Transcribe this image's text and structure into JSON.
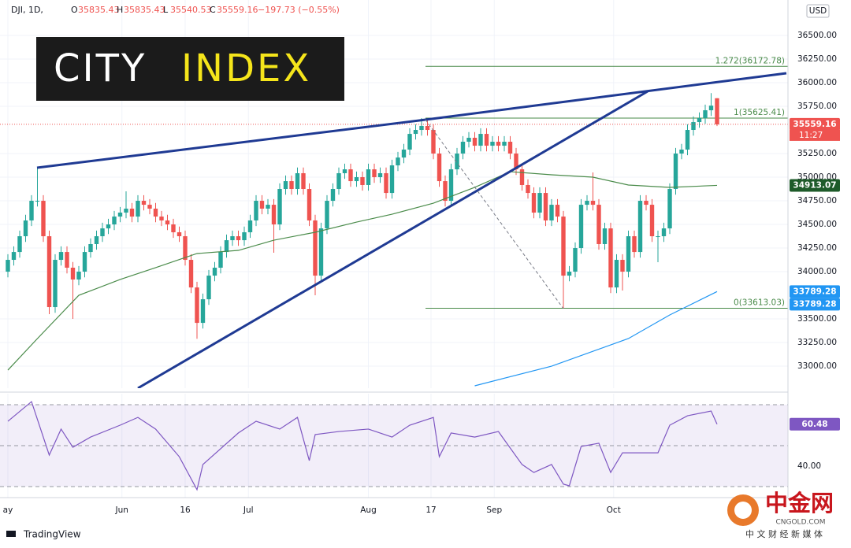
{
  "header": {
    "symbol": "DJI, 1D,",
    "ohlc_prefixes": [
      "O",
      "H",
      "L",
      "C"
    ],
    "change_text": "−197.73 (−0.55%)"
  },
  "logo": {
    "word1": "CITY",
    "word2": "INDEX"
  },
  "watermark": {
    "name": "中金网",
    "site": "CNGOLD.COM",
    "tagline": "中 文 财 经 新 媒 体"
  },
  "footer": {
    "brand": "TradingView"
  },
  "chart_data": {
    "type": "candlestick",
    "currency": "USD",
    "countdown": "11:27",
    "up_color": "#26a69a",
    "down_color": "#ef5350",
    "open": [
      34000,
      34125,
      34208,
      34375,
      34542,
      34750,
      34750,
      34375,
      33625,
      34125,
      34208,
      34042,
      33917,
      34000,
      34208,
      34292,
      34375,
      34458,
      34500,
      34583,
      34625,
      34667,
      34583,
      34750,
      34708,
      34667,
      34583,
      34542,
      34500,
      34417,
      34375,
      34125,
      33833,
      33458,
      33708,
      33958,
      34042,
      34208,
      34333,
      34375,
      34333,
      34417,
      34542,
      34750,
      34667,
      34708,
      34500,
      34875,
      34958,
      34875,
      35042,
      34875,
      34542,
      33958,
      34458,
      34750,
      34875,
      35042,
      35083,
      34958,
      35000,
      34917,
      35083,
      35000,
      35042,
      34833,
      35125,
      35208,
      35292,
      35458,
      35500,
      35542,
      35500,
      35250,
      34958,
      34750,
      35083,
      35250,
      35375,
      35417,
      35333,
      35458,
      35333,
      35375,
      35333,
      35375,
      35250,
      35083,
      34917,
      34833,
      34625,
      34833,
      34542,
      34708,
      34583,
      33958,
      34000,
      34250,
      34708,
      34750,
      34708,
      34292,
      34458,
      33833,
      34125,
      34000,
      34375,
      34208,
      34750,
      34708,
      34375,
      34375,
      34458,
      34875,
      35250,
      35292,
      35500,
      35583,
      35625,
      35708,
      35835.43
    ],
    "high": [
      34185,
      34268,
      34435,
      34602,
      34810,
      35100,
      34810,
      34435,
      34185,
      34268,
      34268,
      34102,
      34060,
      34268,
      34352,
      34435,
      34518,
      34560,
      34643,
      34685,
      34850,
      34727,
      34810,
      34810,
      34768,
      34727,
      34643,
      34602,
      34560,
      34477,
      34435,
      34185,
      33893,
      33768,
      34018,
      34102,
      34268,
      34393,
      34435,
      34435,
      34477,
      34602,
      34810,
      34810,
      34768,
      34768,
      34935,
      35018,
      35018,
      35102,
      35102,
      34935,
      34602,
      34518,
      34810,
      34935,
      35102,
      35143,
      35143,
      35060,
      35060,
      35143,
      35143,
      35102,
      35102,
      35185,
      35268,
      35352,
      35518,
      35560,
      35625.41,
      35602,
      35560,
      35310,
      35018,
      35143,
      35310,
      35435,
      35477,
      35477,
      35518,
      35518,
      35435,
      35435,
      35435,
      35435,
      35310,
      35143,
      34977,
      34893,
      34893,
      34893,
      34768,
      34768,
      34643,
      34060,
      34310,
      34768,
      34810,
      35050,
      34768,
      34518,
      34518,
      34185,
      34185,
      34435,
      34435,
      34810,
      34810,
      34768,
      34435,
      34518,
      34935,
      35310,
      35352,
      35560,
      35643,
      35685,
      35768,
      35890,
      35835.43
    ],
    "low": [
      33940,
      34065,
      34148,
      34315,
      34482,
      34690,
      34315,
      33550,
      33565,
      34065,
      33982,
      33500,
      33857,
      33940,
      34148,
      34232,
      34315,
      34398,
      34440,
      34523,
      34565,
      34523,
      34523,
      34648,
      34607,
      34523,
      34482,
      34440,
      34357,
      34315,
      34065,
      33773,
      33290,
      33398,
      33648,
      33898,
      33982,
      34148,
      34273,
      34273,
      34273,
      34357,
      34482,
      34607,
      34607,
      34200,
      34440,
      34815,
      34815,
      34815,
      34815,
      34482,
      33750,
      33898,
      34398,
      34690,
      34815,
      34982,
      34898,
      34898,
      34857,
      34857,
      34940,
      34940,
      34773,
      34773,
      35065,
      35148,
      35232,
      35398,
      35440,
      35440,
      35190,
      34898,
      34690,
      34690,
      35023,
      35190,
      35315,
      35273,
      35273,
      35273,
      35273,
      35273,
      35273,
      35190,
      35023,
      34857,
      34773,
      34565,
      34565,
      34482,
      34482,
      34523,
      33613.03,
      33898,
      33940,
      34190,
      34648,
      34648,
      34232,
      34232,
      33773,
      33773,
      33800,
      33940,
      34148,
      34148,
      34648,
      34315,
      34100,
      34315,
      34398,
      34815,
      35190,
      35232,
      35440,
      35523,
      35565,
      35648,
      35540.53
    ],
    "close": [
      34125,
      34208,
      34375,
      34542,
      34750,
      34750,
      34375,
      33625,
      34125,
      34208,
      34042,
      33917,
      34000,
      34208,
      34292,
      34375,
      34458,
      34500,
      34583,
      34625,
      34667,
      34583,
      34750,
      34708,
      34667,
      34583,
      34542,
      34500,
      34417,
      34375,
      34125,
      33833,
      33458,
      33708,
      33958,
      34042,
      34208,
      34333,
      34375,
      34333,
      34417,
      34542,
      34750,
      34667,
      34708,
      34500,
      34875,
      34958,
      34875,
      35042,
      34875,
      34542,
      33958,
      34458,
      34750,
      34875,
      35042,
      35083,
      34958,
      35000,
      34917,
      35083,
      35000,
      35042,
      34833,
      35125,
      35208,
      35292,
      35458,
      35500,
      35542,
      35500,
      35250,
      34958,
      34750,
      35083,
      35250,
      35375,
      35417,
      35333,
      35458,
      35333,
      35375,
      35333,
      35375,
      35250,
      35083,
      34917,
      34833,
      34625,
      34833,
      34542,
      34708,
      34583,
      33958,
      34000,
      34250,
      34708,
      34750,
      34708,
      34292,
      34458,
      33833,
      34125,
      34000,
      34375,
      34208,
      34750,
      34708,
      34375,
      34375,
      34458,
      34875,
      35250,
      35292,
      35500,
      35583,
      35625,
      35708,
      35756.89,
      35559.16
    ],
    "ylim": [
      32767,
      36875
    ],
    "yticks": [
      {
        "value": 33000,
        "label": "33000.00"
      },
      {
        "value": 33250,
        "label": "33250.00"
      },
      {
        "value": 33500,
        "label": "33500.00"
      },
      {
        "value": 34000,
        "label": "34000.00"
      },
      {
        "value": 34250,
        "label": "34250.00"
      },
      {
        "value": 34500,
        "label": "34500.00"
      },
      {
        "value": 34750,
        "label": "34750.00"
      },
      {
        "value": 35000,
        "label": "35000.00"
      },
      {
        "value": 35250,
        "label": "35250.00"
      },
      {
        "value": 35750,
        "label": "35750.00"
      },
      {
        "value": 36000,
        "label": "36000.00"
      },
      {
        "value": 36250,
        "label": "36250.00"
      },
      {
        "value": 36500,
        "label": "36500.00"
      }
    ],
    "xticks": [
      {
        "value": 0,
        "label": "ay"
      },
      {
        "value": 19.3,
        "label": "Jun"
      },
      {
        "value": 30,
        "label": "16"
      },
      {
        "value": 40.7,
        "label": "Jul"
      },
      {
        "value": 61,
        "label": "Aug"
      },
      {
        "value": 71.6,
        "label": "17"
      },
      {
        "value": 82.3,
        "label": "Sep"
      },
      {
        "value": 102.5,
        "label": "Oct"
      }
    ],
    "grid": true,
    "moving_averages": [
      {
        "color": "#4a8b4a",
        "x": [
          0,
          5,
          12,
          19,
          25,
          32,
          39,
          45,
          52,
          59,
          65,
          72,
          79,
          85,
          92,
          99,
          105,
          112,
          120
        ],
        "values": [
          32958,
          33292,
          33750,
          33917,
          34042,
          34192,
          34225,
          34333,
          34417,
          34525,
          34608,
          34725,
          34892,
          35058,
          35025,
          35000,
          34917,
          34892,
          34913.07
        ]
      },
      {
        "color": "#2196f3",
        "x": [
          79,
          92,
          105,
          112,
          120
        ],
        "values": [
          32792,
          33000,
          33292,
          33542,
          33789.28
        ]
      }
    ],
    "fib_levels": [
      {
        "value": 36172.78,
        "label": "1.272(36172.78)"
      },
      {
        "value": 35625.41,
        "label": "1(35625.41)"
      },
      {
        "value": 33613.03,
        "label": "0(33613.03)"
      }
    ],
    "fib_color": "#4a8b4a",
    "rsi": {
      "type": "line",
      "color": "#7e57c2",
      "x": [
        0,
        4,
        7,
        9,
        11,
        14,
        19,
        22,
        25,
        29,
        32,
        33,
        39,
        42,
        46,
        49,
        51,
        52,
        56,
        61,
        65,
        68,
        72,
        73,
        75,
        79,
        83,
        87,
        89,
        92,
        94,
        95,
        97,
        100,
        102,
        104,
        107,
        110,
        112,
        115,
        119,
        120
      ],
      "values": [
        61.9,
        71.5,
        45.4,
        58.1,
        49.2,
        54.2,
        60.0,
        63.8,
        58.1,
        44.6,
        28.5,
        40.8,
        56.2,
        61.9,
        58.1,
        63.8,
        42.7,
        55.4,
        56.9,
        58.1,
        54.2,
        60.0,
        63.8,
        44.6,
        56.2,
        54.2,
        56.9,
        40.8,
        36.9,
        40.8,
        31.2,
        30.4,
        49.6,
        51.2,
        36.9,
        46.5,
        46.5,
        46.5,
        60.0,
        64.6,
        66.9,
        60.48
      ],
      "ylim": [
        27.31,
        73.46
      ],
      "yticks": [
        {
          "value": 40,
          "label": "40.00"
        }
      ],
      "levels": [
        70,
        50,
        30
      ]
    }
  }
}
